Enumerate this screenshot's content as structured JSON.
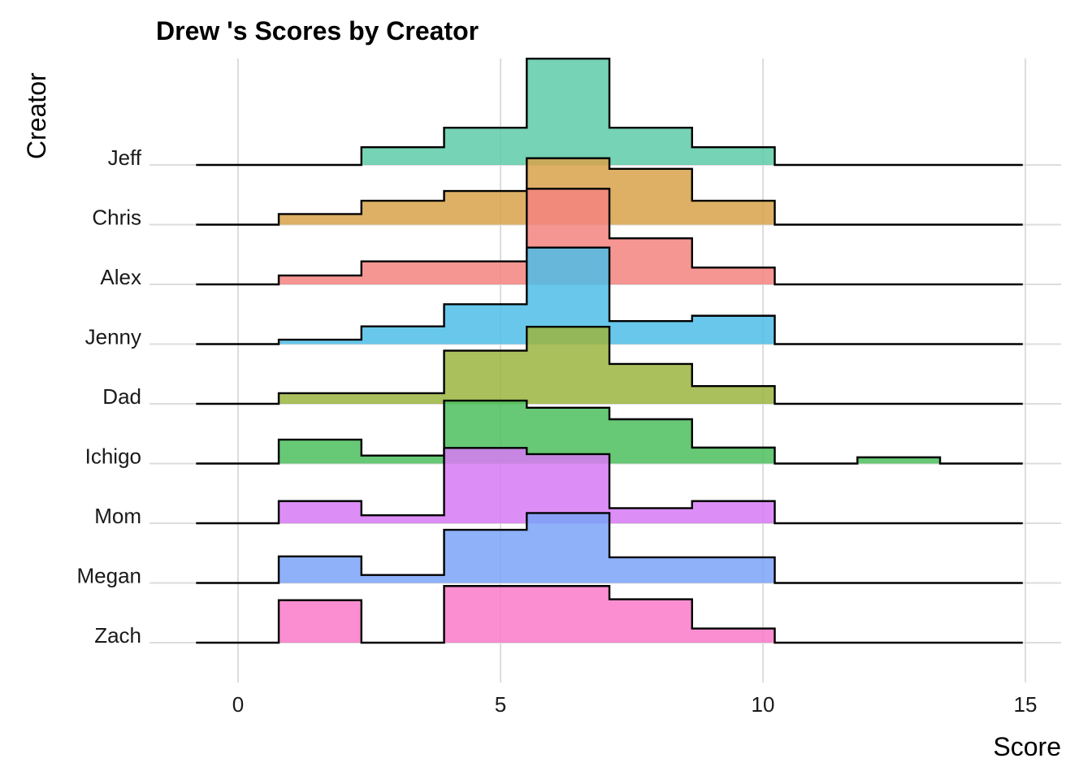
{
  "chart_data": {
    "type": "ridgeline-histogram",
    "title": "Drew 's Scores by Creator",
    "xlabel": "Score",
    "ylabel": "Creator",
    "xlim": [
      -1.7,
      15.7
    ],
    "x_ticks": [
      0,
      5,
      10,
      15
    ],
    "grid": true,
    "legend": "none",
    "bin_edges": [
      -0.8,
      0.775,
      2.35,
      3.925,
      5.5,
      7.075,
      8.65,
      10.225,
      11.8,
      13.375,
      14.95
    ],
    "creators": [
      {
        "name": "Jeff",
        "color": "#5ecba8",
        "heights": [
          0,
          0,
          0.2,
          0.42,
          1.2,
          0.42,
          0.2,
          0,
          0,
          0
        ]
      },
      {
        "name": "Chris",
        "color": "#d7a24a",
        "heights": [
          0,
          0.12,
          0.27,
          0.38,
          0.75,
          0.63,
          0.27,
          0,
          0,
          0
        ]
      },
      {
        "name": "Alex",
        "color": "#f4847f",
        "heights": [
          0,
          0.1,
          0.26,
          0.26,
          1.08,
          0.52,
          0.19,
          0,
          0,
          0
        ]
      },
      {
        "name": "Jenny",
        "color": "#4dbde8",
        "heights": [
          0,
          0.05,
          0.2,
          0.45,
          1.09,
          0.26,
          0.32,
          0,
          0,
          0
        ]
      },
      {
        "name": "Dad",
        "color": "#9bb53f",
        "heights": [
          0,
          0.12,
          0.12,
          0.6,
          0.87,
          0.45,
          0.2,
          0,
          0,
          0
        ]
      },
      {
        "name": "Ichigo",
        "color": "#4cbe5d",
        "heights": [
          0,
          0.27,
          0.09,
          0.71,
          0.63,
          0.5,
          0.18,
          0,
          0.07,
          0
        ]
      },
      {
        "name": "Mom",
        "color": "#d77af4",
        "heights": [
          0,
          0.25,
          0.09,
          0.85,
          0.78,
          0.17,
          0.25,
          0,
          0,
          0
        ]
      },
      {
        "name": "Megan",
        "color": "#7aa3f9",
        "heights": [
          0,
          0.3,
          0.09,
          0.6,
          0.79,
          0.29,
          0.29,
          0,
          0,
          0
        ]
      },
      {
        "name": "Zach",
        "color": "#f97ac8",
        "heights": [
          0,
          0.48,
          0,
          0.64,
          0.64,
          0.49,
          0.16,
          0,
          0,
          0
        ]
      }
    ]
  }
}
